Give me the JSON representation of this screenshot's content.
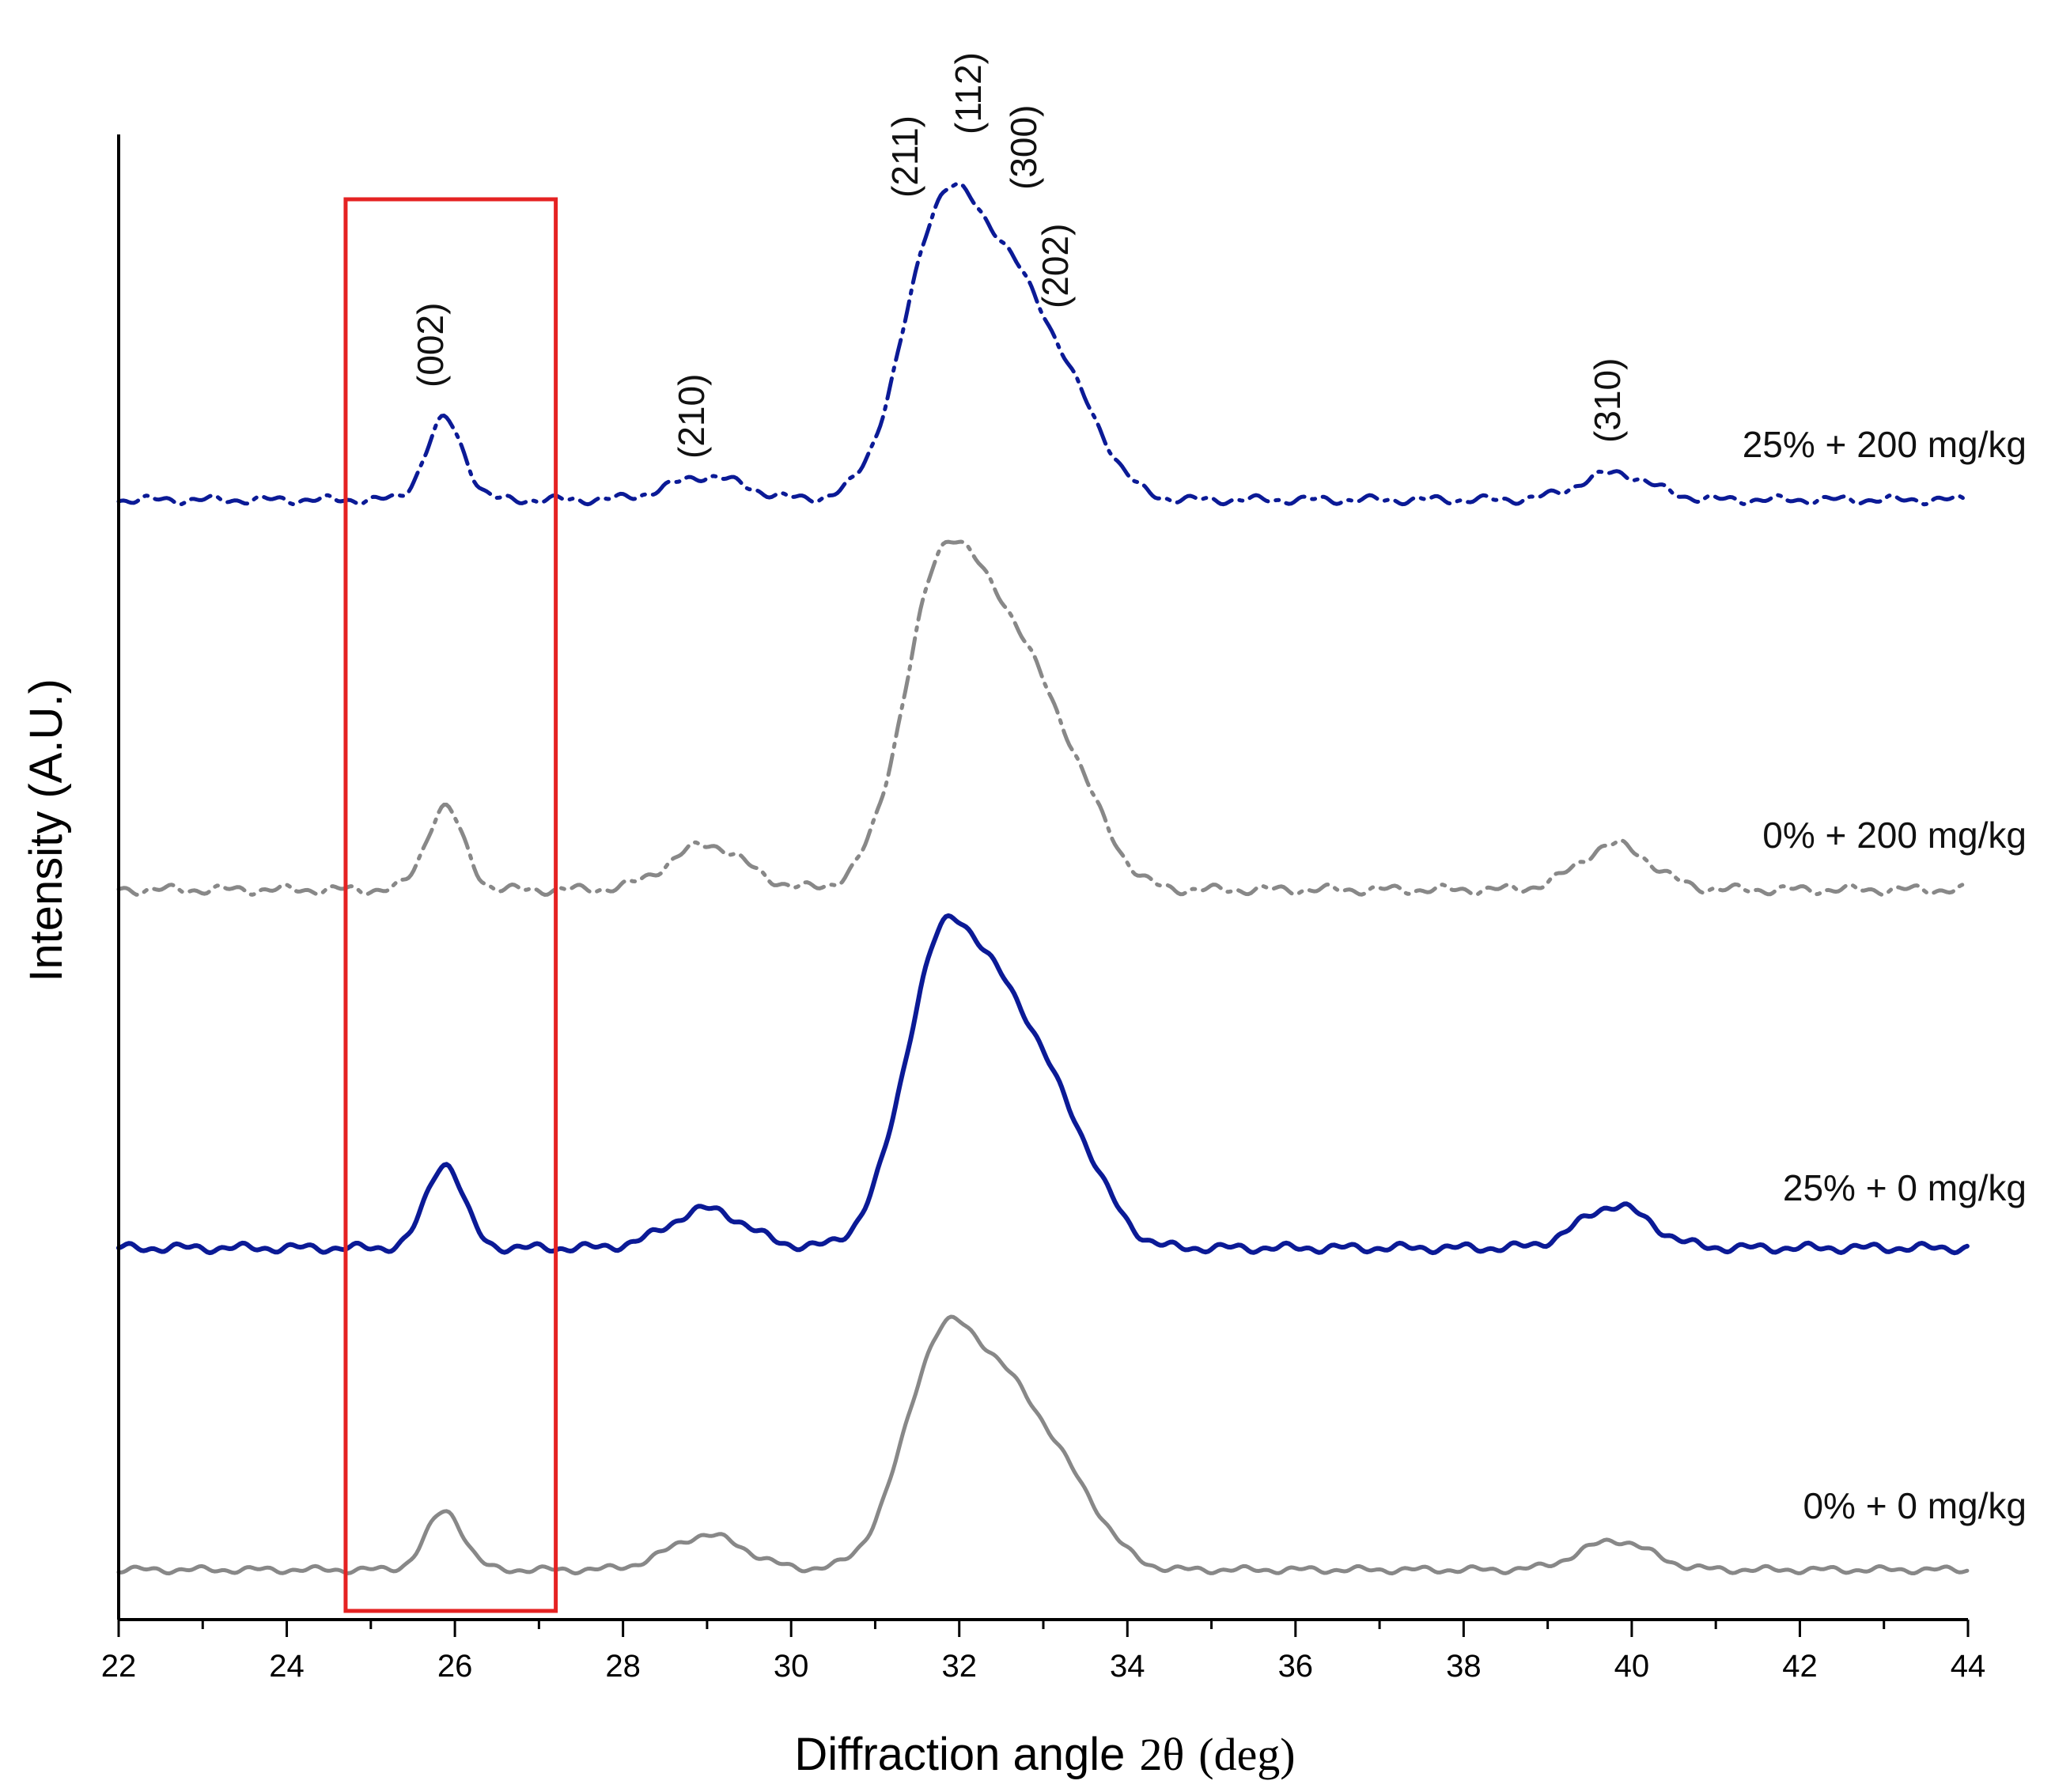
{
  "chart_data": {
    "type": "line",
    "title": "",
    "xlabel": "Diffraction angle",
    "xlabel_symbol": "2θ",
    "xlabel_unit": "(deg)",
    "ylabel": "Intensity (A.U.)",
    "xlim": [
      22,
      44
    ],
    "x_ticks": [
      22,
      24,
      26,
      28,
      30,
      32,
      34,
      36,
      38,
      40,
      42,
      44
    ],
    "grid": false,
    "highlight_region": {
      "x_range": [
        24.7,
        27.2
      ],
      "color": "#e52222"
    },
    "peaks": [
      {
        "label": "(002)",
        "x": 25.9,
        "intensity": 0.25
      },
      {
        "label": "(210)",
        "x": 29.0,
        "intensity": 0.12
      },
      {
        "label": "(211)",
        "x": 31.6,
        "intensity": 0.82
      },
      {
        "label": "(112)",
        "x": 32.2,
        "intensity": 1.0
      },
      {
        "label": "(300)",
        "x": 32.9,
        "intensity": 0.72
      },
      {
        "label": "(202)",
        "x": 33.3,
        "intensity": 0.52
      },
      {
        "label": "(310)",
        "x": 39.8,
        "intensity": 0.12
      }
    ],
    "series": [
      {
        "name": "0% + 0 mg/kg",
        "color": "#888888",
        "style": "solid",
        "offset": 0,
        "p002": 0.22,
        "p210": 0.13,
        "main": 1.0,
        "p310": 0.11
      },
      {
        "name": "25% + 0 mg/kg",
        "color": "#0b1a96",
        "style": "solid",
        "offset": 1,
        "p002": 0.24,
        "p210": 0.11,
        "main": 1.0,
        "p310": 0.12
      },
      {
        "name": "0% + 200 mg/kg",
        "color": "#888888",
        "style": "dashdot",
        "offset": 2,
        "p002": 0.22,
        "p210": 0.12,
        "main": 1.0,
        "p310": 0.12
      },
      {
        "name": "25% + 200 mg/kg",
        "color": "#0b1a96",
        "style": "dashdot",
        "offset": 3,
        "p002": 0.24,
        "p210": 0.07,
        "main": 1.0,
        "p310": 0.08
      }
    ]
  }
}
